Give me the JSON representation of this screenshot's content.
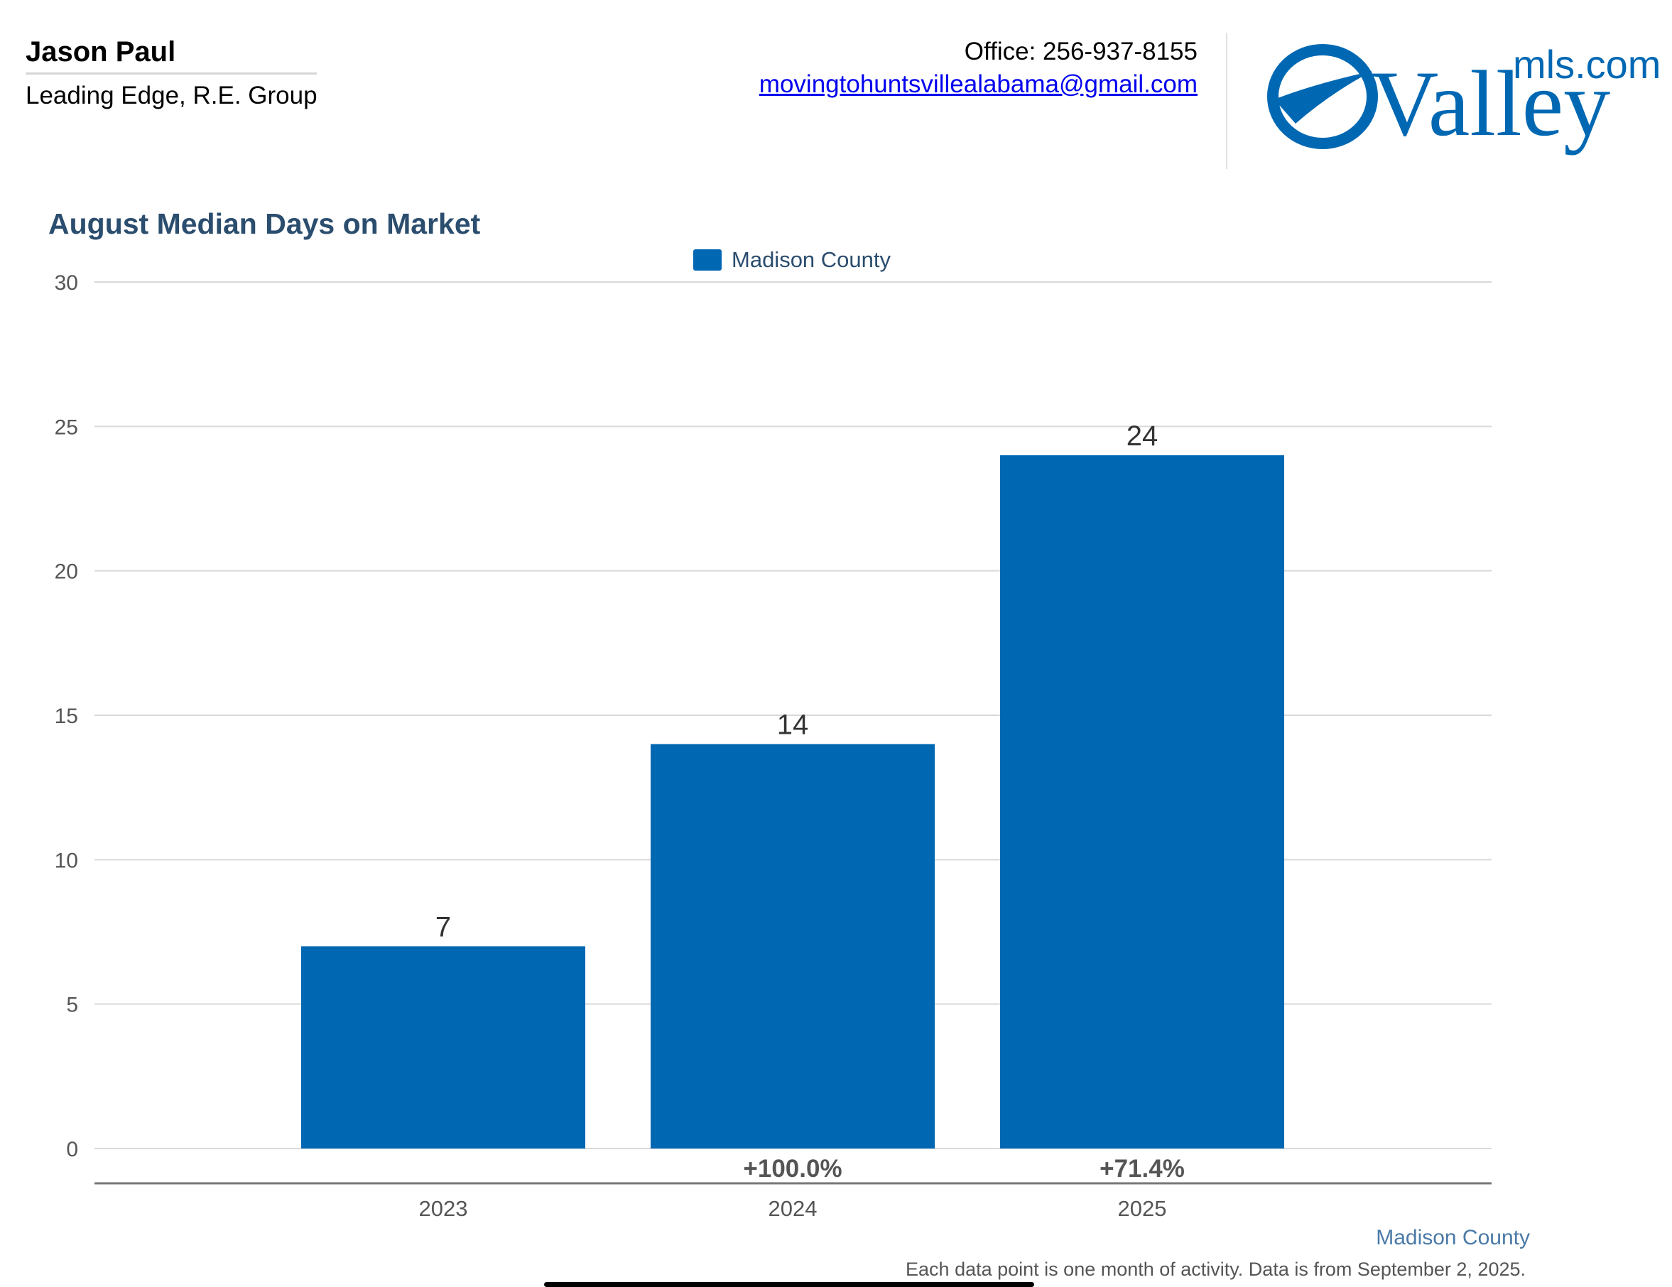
{
  "agent": {
    "name": "Jason Paul",
    "company": "Leading Edge, R.E. Group"
  },
  "contact": {
    "office": "Office: 256-937-8155",
    "email": "movingtohuntsvillealabama@gmail.com"
  },
  "logo": {
    "wordmark": "Valley",
    "suffix": "mls.com"
  },
  "colors": {
    "bar": "#0068b3",
    "title": "#2b4d6e",
    "grid": "#d9d9d9"
  },
  "chart_data": {
    "type": "bar",
    "title": "August Median Days on Market",
    "categories": [
      "2023",
      "2024",
      "2025"
    ],
    "series": [
      {
        "name": "Madison County",
        "values": [
          7,
          14,
          24
        ]
      }
    ],
    "data_labels": [
      "7",
      "14",
      "24"
    ],
    "change_labels": [
      "",
      "+100.0%",
      "+71.4%"
    ],
    "ylim": [
      0,
      30
    ],
    "yticks": [
      0,
      5,
      10,
      15,
      20,
      25,
      30
    ],
    "grid": true,
    "legend_position": "top-center",
    "xlabel": "",
    "ylabel": ""
  },
  "footer": {
    "series_label": "Madison County",
    "note": "Each data point is one month of activity. Data is from September 2, 2025."
  }
}
